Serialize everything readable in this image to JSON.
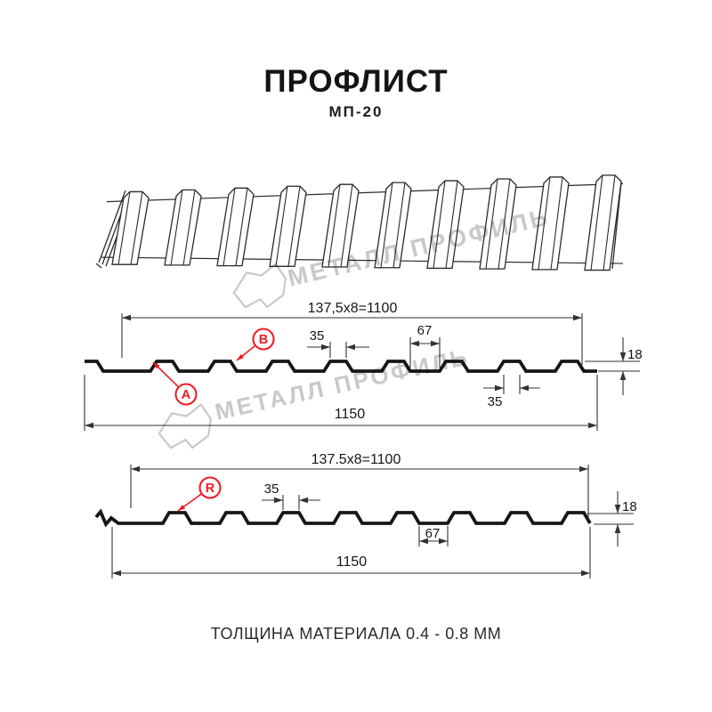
{
  "header": {
    "title": "ПРОФЛИСТ",
    "subtitle": "МП-20"
  },
  "watermark": {
    "text": "МЕТАЛЛ ПРОФИЛЬ"
  },
  "colors": {
    "ink": "#161616",
    "line": "#333333",
    "red": "#ee1c25",
    "watermark": "#c9c9c9"
  },
  "drawing_top": {
    "label_b": "B",
    "label_a": "A",
    "dim_module": "137,5x8=1100",
    "dim_crest": "35",
    "dim_valley": "67",
    "dim_height": "18",
    "dim_crest_bottom": "35",
    "dim_width": "1150"
  },
  "drawing_bottom": {
    "label_r": "R",
    "dim_module": "137.5x8=1100",
    "dim_crest": "35",
    "dim_valley": "67",
    "dim_height": "18",
    "dim_width": "1150"
  },
  "caption": "ТОЛЩИНА МАТЕРИАЛА 0.4 - 0.8 ММ"
}
